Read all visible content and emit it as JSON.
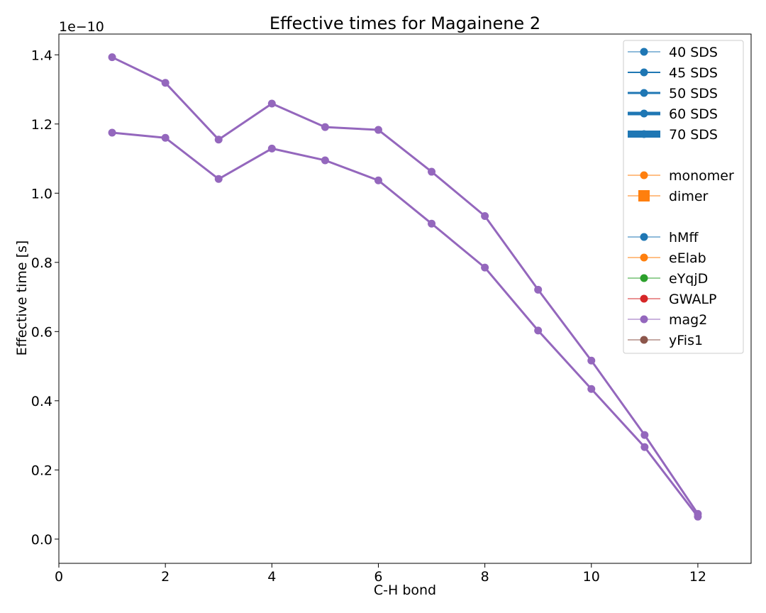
{
  "chart_data": {
    "type": "line",
    "title": "Effective times for Magainene 2",
    "xlabel": "C-H bond",
    "ylabel": "Effective time [s]",
    "y_multiplier": "1e−10",
    "xlim": [
      0,
      13
    ],
    "ylim": [
      -0.07,
      1.46
    ],
    "x_ticks": [
      "0",
      "2",
      "4",
      "6",
      "8",
      "10",
      "12"
    ],
    "y_ticks": [
      "0.0",
      "0.2",
      "0.4",
      "0.6",
      "0.8",
      "1.0",
      "1.2",
      "1.4"
    ],
    "grid": false,
    "legend_position": "top-right",
    "series": [
      {
        "color": "#9467bd",
        "x": [
          1,
          2,
          3,
          4,
          5,
          6,
          7,
          8,
          9,
          10,
          11,
          12
        ],
        "values": [
          1.393,
          1.319,
          1.155,
          1.259,
          1.191,
          1.183,
          1.062,
          0.934,
          0.721,
          0.516,
          0.301,
          0.073
        ]
      },
      {
        "color": "#9467bd",
        "x": [
          1,
          2,
          3,
          4,
          5,
          6,
          7,
          8,
          9,
          10,
          11,
          12
        ],
        "values": [
          1.175,
          1.16,
          1.041,
          1.129,
          1.095,
          1.037,
          0.912,
          0.785,
          0.603,
          0.434,
          0.266,
          0.065
        ]
      }
    ],
    "legend": [
      {
        "label": "40 SDS",
        "color": "#1f77b4",
        "marker": "circle",
        "weight": "thin"
      },
      {
        "label": "45 SDS",
        "color": "#1f77b4",
        "marker": "circle",
        "weight": "medium"
      },
      {
        "label": "50 SDS",
        "color": "#1f77b4",
        "marker": "circle",
        "weight": "thick"
      },
      {
        "label": "60 SDS",
        "color": "#1f77b4",
        "marker": "circle",
        "weight": "heavy"
      },
      {
        "label": "70 SDS",
        "color": "#1f77b4",
        "marker": "circle",
        "weight": "heaviest"
      },
      {
        "label": "",
        "color": "",
        "marker": "none",
        "weight": "none"
      },
      {
        "label": "monomer",
        "color": "#ff7f0e",
        "marker": "circle",
        "weight": "thin"
      },
      {
        "label": "dimer",
        "color": "#ff7f0e",
        "marker": "square",
        "weight": "thin"
      },
      {
        "label": "",
        "color": "",
        "marker": "none",
        "weight": "none"
      },
      {
        "label": "hMff",
        "color": "#1f77b4",
        "marker": "circle",
        "weight": "thin"
      },
      {
        "label": "eElab",
        "color": "#ff7f0e",
        "marker": "circle",
        "weight": "thin"
      },
      {
        "label": "eYqjD",
        "color": "#2ca02c",
        "marker": "circle",
        "weight": "thin"
      },
      {
        "label": "GWALP",
        "color": "#d62728",
        "marker": "circle",
        "weight": "thin"
      },
      {
        "label": "mag2",
        "color": "#9467bd",
        "marker": "circle",
        "weight": "thin"
      },
      {
        "label": "yFis1",
        "color": "#8c564b",
        "marker": "circle",
        "weight": "thin"
      }
    ]
  }
}
